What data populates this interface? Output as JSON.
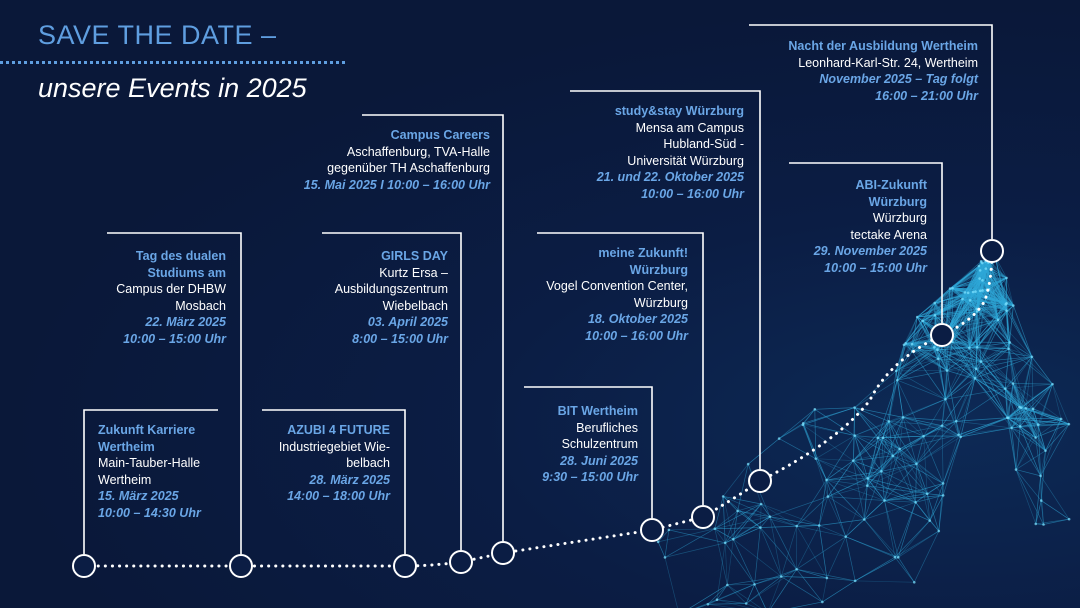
{
  "header": {
    "title": "SAVE THE DATE –",
    "subtitle": "unsere Events in 2025"
  },
  "colors": {
    "accent": "#5f9ee0",
    "background": "#0a1839",
    "line": "#ffffff"
  },
  "events": [
    {
      "name_lines": [
        "Zukunft Karriere",
        "Wertheim"
      ],
      "address_lines": [
        "Main-Tauber-Halle",
        "Wertheim"
      ],
      "date": "15. März 2025",
      "time": "10:00 – 14:30 Uhr"
    },
    {
      "name_lines": [
        "Tag des dualen",
        "Studiums am"
      ],
      "address_lines": [
        "Campus der DHBW",
        "Mosbach"
      ],
      "date": "22. März 2025",
      "time": "10:00 – 15:00 Uhr"
    },
    {
      "name_lines": [
        "AZUBI 4 FUTURE"
      ],
      "address_lines": [
        "Industriegebiet Wie-",
        "belbach"
      ],
      "date": "28. März 2025",
      "time": "14:00 – 18:00 Uhr"
    },
    {
      "name_lines": [
        "GIRLS DAY"
      ],
      "address_lines": [
        "Kurtz Ersa –",
        "Ausbildungszentrum",
        "Wiebelbach"
      ],
      "date": "03. April 2025",
      "time": "8:00 – 15:00 Uhr"
    },
    {
      "name_lines": [
        "Campus Careers"
      ],
      "address_lines": [
        "Aschaffenburg, TVA-Halle",
        "gegenüber TH Aschaffenburg"
      ],
      "date": "15. Mai 2025 I 10:00 – 16:00 Uhr",
      "time": ""
    },
    {
      "name_lines": [
        "BIT Wertheim"
      ],
      "address_lines": [
        "Berufliches",
        "Schulzentrum"
      ],
      "date": "28. Juni 2025",
      "time": "9:30 – 15:00 Uhr"
    },
    {
      "name_lines": [
        "meine Zukunft!",
        "Würzburg"
      ],
      "address_lines": [
        "Vogel Convention Center,",
        "Würzburg"
      ],
      "date": "18. Oktober 2025",
      "time": "10:00 – 16:00 Uhr"
    },
    {
      "name_lines": [
        "study&stay Würzburg"
      ],
      "address_lines": [
        "Mensa am Campus",
        "Hubland-Süd -",
        "Universität Würzburg"
      ],
      "date": "21. und 22. Oktober 2025",
      "time": "10:00 – 16:00 Uhr"
    },
    {
      "name_lines": [
        "ABI-Zukunft",
        "Würzburg"
      ],
      "address_lines": [
        "Würzburg",
        "tectake Arena"
      ],
      "date": "29. November 2025",
      "time": "10:00 – 15:00 Uhr"
    },
    {
      "name_lines": [
        "Nacht der Ausbildung Wertheim"
      ],
      "address_lines": [
        "Leonhard-Karl-Str. 24, Wertheim"
      ],
      "date": "November 2025 – Tag folgt",
      "time": "16:00 – 21:00 Uhr"
    }
  ]
}
